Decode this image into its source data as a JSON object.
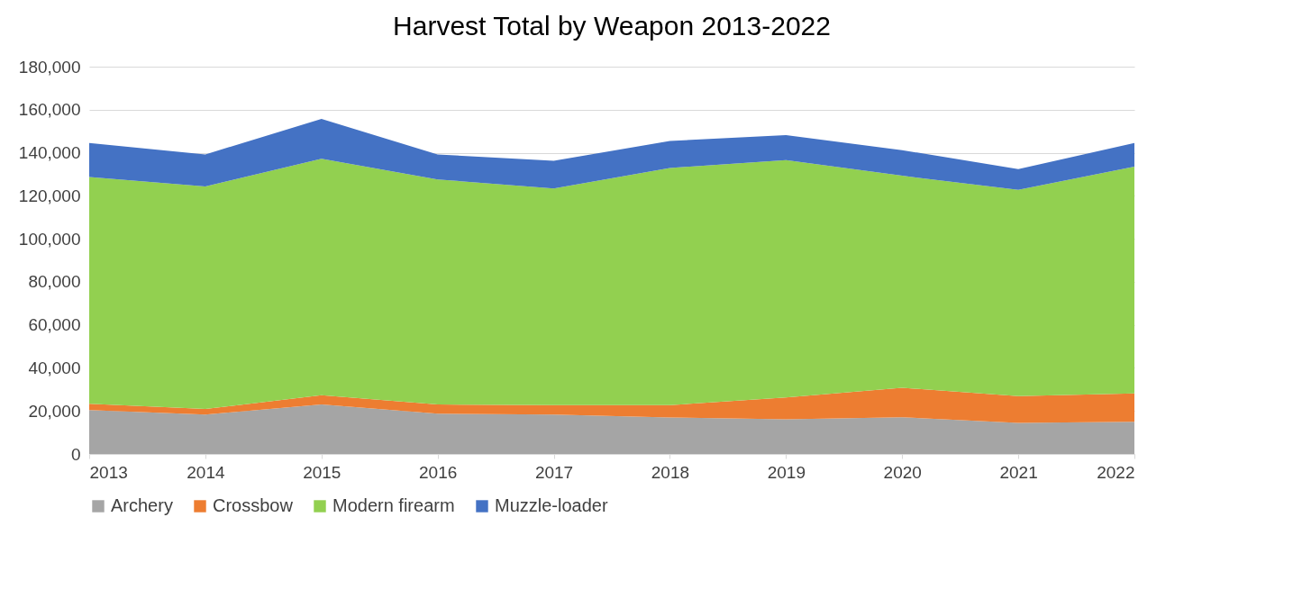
{
  "chart_data": {
    "type": "area",
    "title": "Harvest Total by Weapon 2013-2022",
    "stacked": true,
    "categories": [
      "2013",
      "2014",
      "2015",
      "2016",
      "2017",
      "2018",
      "2019",
      "2020",
      "2021",
      "2022"
    ],
    "series": [
      {
        "name": "Archery",
        "color": "#a5a5a5",
        "values": [
          20400,
          18300,
          23000,
          18700,
          18300,
          17000,
          16100,
          17100,
          14400,
          15000
        ]
      },
      {
        "name": "Crossbow",
        "color": "#ed7d31",
        "values": [
          2900,
          2600,
          4300,
          4300,
          4400,
          5700,
          10200,
          13700,
          12500,
          13200
        ]
      },
      {
        "name": "Modern firearm",
        "color": "#92d050",
        "values": [
          105400,
          103400,
          109900,
          104600,
          100700,
          110200,
          110300,
          98500,
          95900,
          105300
        ]
      },
      {
        "name": "Muzzle-loader",
        "color": "#4472c4",
        "values": [
          15800,
          14900,
          18500,
          11600,
          12900,
          12600,
          11600,
          11900,
          9600,
          11000
        ]
      }
    ],
    "ylim": [
      0,
      180000
    ],
    "yticks": [
      0,
      {
        "value": 20000,
        "label": "20,000"
      },
      {
        "value": 40000,
        "label": "40,000"
      },
      {
        "value": 60000,
        "label": "60,000"
      },
      {
        "value": 80000,
        "label": "80,000"
      },
      {
        "value": 100000,
        "label": "100,000"
      },
      {
        "value": 120000,
        "label": "120,000"
      },
      {
        "value": 140000,
        "label": "140,000"
      },
      {
        "value": 160000,
        "label": "160,000"
      },
      {
        "value": 180000,
        "label": "180,000"
      }
    ],
    "grid": "y",
    "legend": "bottom"
  }
}
